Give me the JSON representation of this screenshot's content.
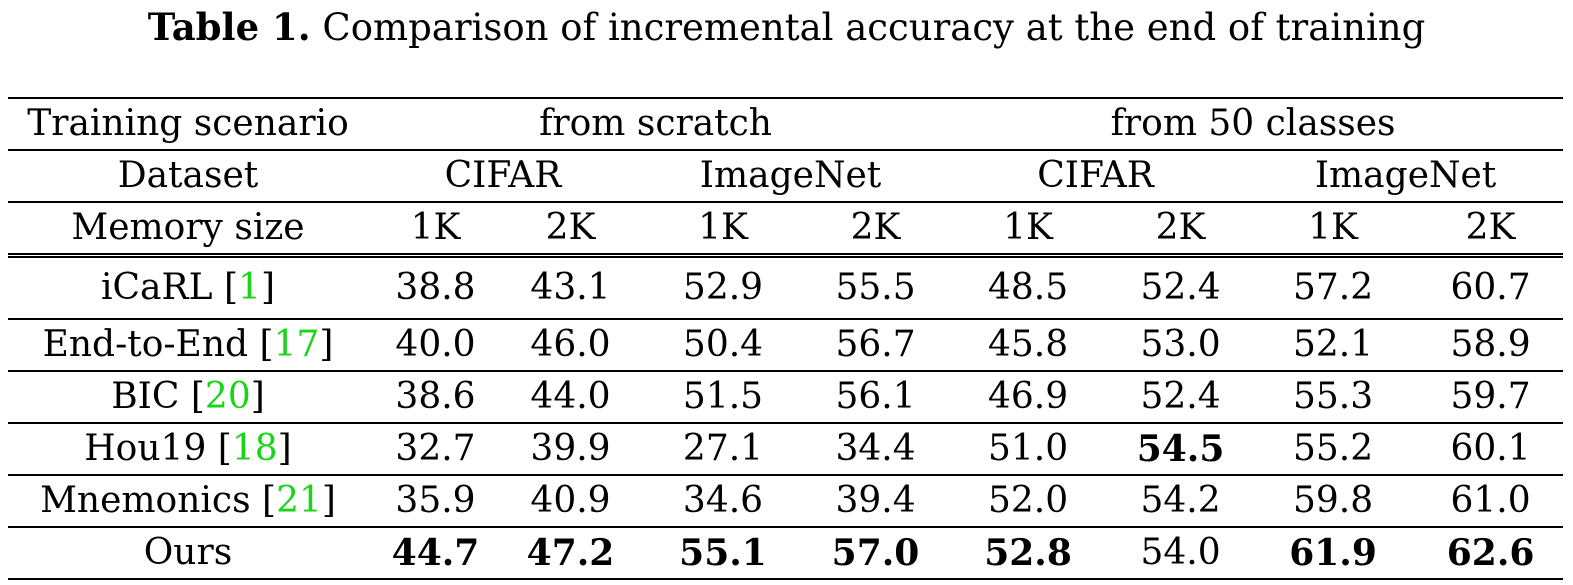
{
  "caption": {
    "label": "Table 1.",
    "text": "Comparison of incremental accuracy at the end of training"
  },
  "header": {
    "scenario_label": "Training scenario",
    "scenario_1": "from scratch",
    "scenario_2": "from 50 classes",
    "dataset_label": "Dataset",
    "datasets": [
      "CIFAR",
      "ImageNet",
      "CIFAR",
      "ImageNet"
    ],
    "memory_label": "Memory size",
    "memory": [
      "1K",
      "2K",
      "1K",
      "2K",
      "1K",
      "2K",
      "1K",
      "2K"
    ]
  },
  "rows": [
    {
      "method": "iCaRL ",
      "open": "[",
      "cite": "1",
      "close": "]",
      "values": [
        "38.8",
        "43.1",
        "52.9",
        "55.5",
        "48.5",
        "52.4",
        "57.2",
        "60.7"
      ]
    },
    {
      "method": "End-to-End ",
      "open": "[",
      "cite": "17",
      "close": "]",
      "values": [
        "40.0",
        "46.0",
        "50.4",
        "56.7",
        "45.8",
        "53.0",
        "52.1",
        "58.9"
      ]
    },
    {
      "method": "BIC ",
      "open": "[",
      "cite": "20",
      "close": "]",
      "values": [
        "38.6",
        "44.0",
        "51.5",
        "56.1",
        "46.9",
        "52.4",
        "55.3",
        "59.7"
      ]
    },
    {
      "method": "Hou19 ",
      "open": "[",
      "cite": "18",
      "close": "]",
      "values": [
        "32.7",
        "39.9",
        "27.1",
        "34.4",
        "51.0",
        "54.5",
        "55.2",
        "60.1"
      ]
    },
    {
      "method": "Mnemonics ",
      "open": "[",
      "cite": "21",
      "close": "]",
      "values": [
        "35.9",
        "40.9",
        "34.6",
        "39.4",
        "52.0",
        "54.2",
        "59.8",
        "61.0"
      ]
    },
    {
      "method": "Ours",
      "values": [
        "44.7",
        "47.2",
        "55.1",
        "57.0",
        "52.8",
        "54.0",
        "61.9",
        "62.6"
      ]
    }
  ]
}
